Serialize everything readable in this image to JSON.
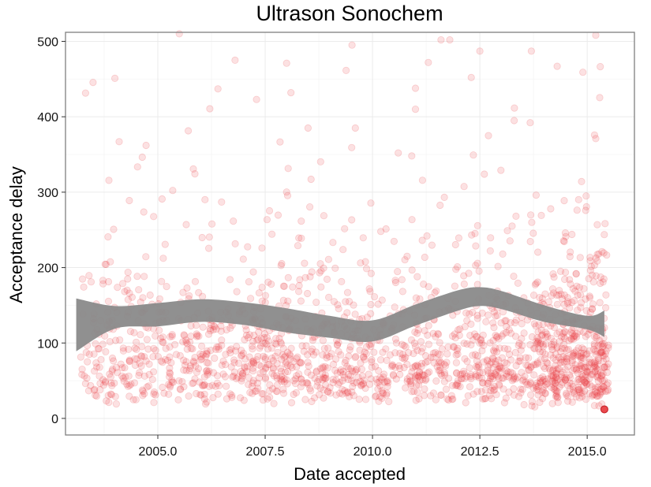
{
  "chart_data": {
    "type": "scatter",
    "title": "Ultrason Sonochem",
    "xlabel": "Date accepted",
    "ylabel": "Acceptance delay",
    "xlim": [
      2002.85,
      2016.1
    ],
    "ylim": [
      -22,
      512
    ],
    "x_ticks": [
      2005.0,
      2007.5,
      2010.0,
      2012.5,
      2015.0
    ],
    "x_tick_labels": [
      "2005.0",
      "2007.5",
      "2010.0",
      "2012.5",
      "2015.0"
    ],
    "y_ticks": [
      0,
      100,
      200,
      300,
      400,
      500
    ],
    "y_tick_labels": [
      "0",
      "100",
      "200",
      "300",
      "400",
      "500"
    ],
    "grid": true,
    "legend": "none",
    "colors": {
      "points": "#e8353a",
      "band": "#8a8a8a",
      "grid_major": "#ebebeb",
      "grid_minor": "#f5f5f5",
      "panel_border": "#7f7f7f"
    },
    "point_alpha": 0.15,
    "point_count_approx": 1850,
    "smooth": {
      "x": [
        2003.1,
        2004.0,
        2005.0,
        2006.0,
        2007.0,
        2008.0,
        2009.0,
        2010.0,
        2011.0,
        2012.0,
        2012.5,
        2013.0,
        2014.0,
        2015.0,
        2015.4
      ],
      "lower": [
        89,
        119,
        122,
        128,
        124,
        114,
        107,
        102,
        123,
        143,
        149,
        145,
        128,
        118,
        108
      ],
      "upper": [
        159,
        149,
        153,
        158,
        154,
        146,
        136,
        130,
        151,
        170,
        174,
        169,
        150,
        136,
        143
      ]
    },
    "highlighted_point": {
      "x": 2015.4,
      "y": 12
    },
    "sample_points": [
      {
        "x": 2004.0,
        "y": 451
      },
      {
        "x": 2004.1,
        "y": 367
      },
      {
        "x": 2005.5,
        "y": 510
      },
      {
        "x": 2006.4,
        "y": 437
      },
      {
        "x": 2006.8,
        "y": 475
      },
      {
        "x": 2007.3,
        "y": 423
      },
      {
        "x": 2008.0,
        "y": 471
      },
      {
        "x": 2008.1,
        "y": 432
      },
      {
        "x": 2008.5,
        "y": 385
      },
      {
        "x": 2010.3,
        "y": 512
      },
      {
        "x": 2011.0,
        "y": 410
      },
      {
        "x": 2011.3,
        "y": 472
      },
      {
        "x": 2011.8,
        "y": 502
      },
      {
        "x": 2012.3,
        "y": 452
      },
      {
        "x": 2012.5,
        "y": 487
      },
      {
        "x": 2013.3,
        "y": 395
      },
      {
        "x": 2013.7,
        "y": 487
      },
      {
        "x": 2014.3,
        "y": 467
      },
      {
        "x": 2014.9,
        "y": 459
      },
      {
        "x": 2015.2,
        "y": 508
      },
      {
        "x": 2015.2,
        "y": 371
      },
      {
        "x": 2005.1,
        "y": 291
      },
      {
        "x": 2006.1,
        "y": 290
      },
      {
        "x": 2009.6,
        "y": 385
      },
      {
        "x": 2010.6,
        "y": 352
      },
      {
        "x": 2012.7,
        "y": 375
      },
      {
        "x": 2014.8,
        "y": 290
      }
    ]
  }
}
